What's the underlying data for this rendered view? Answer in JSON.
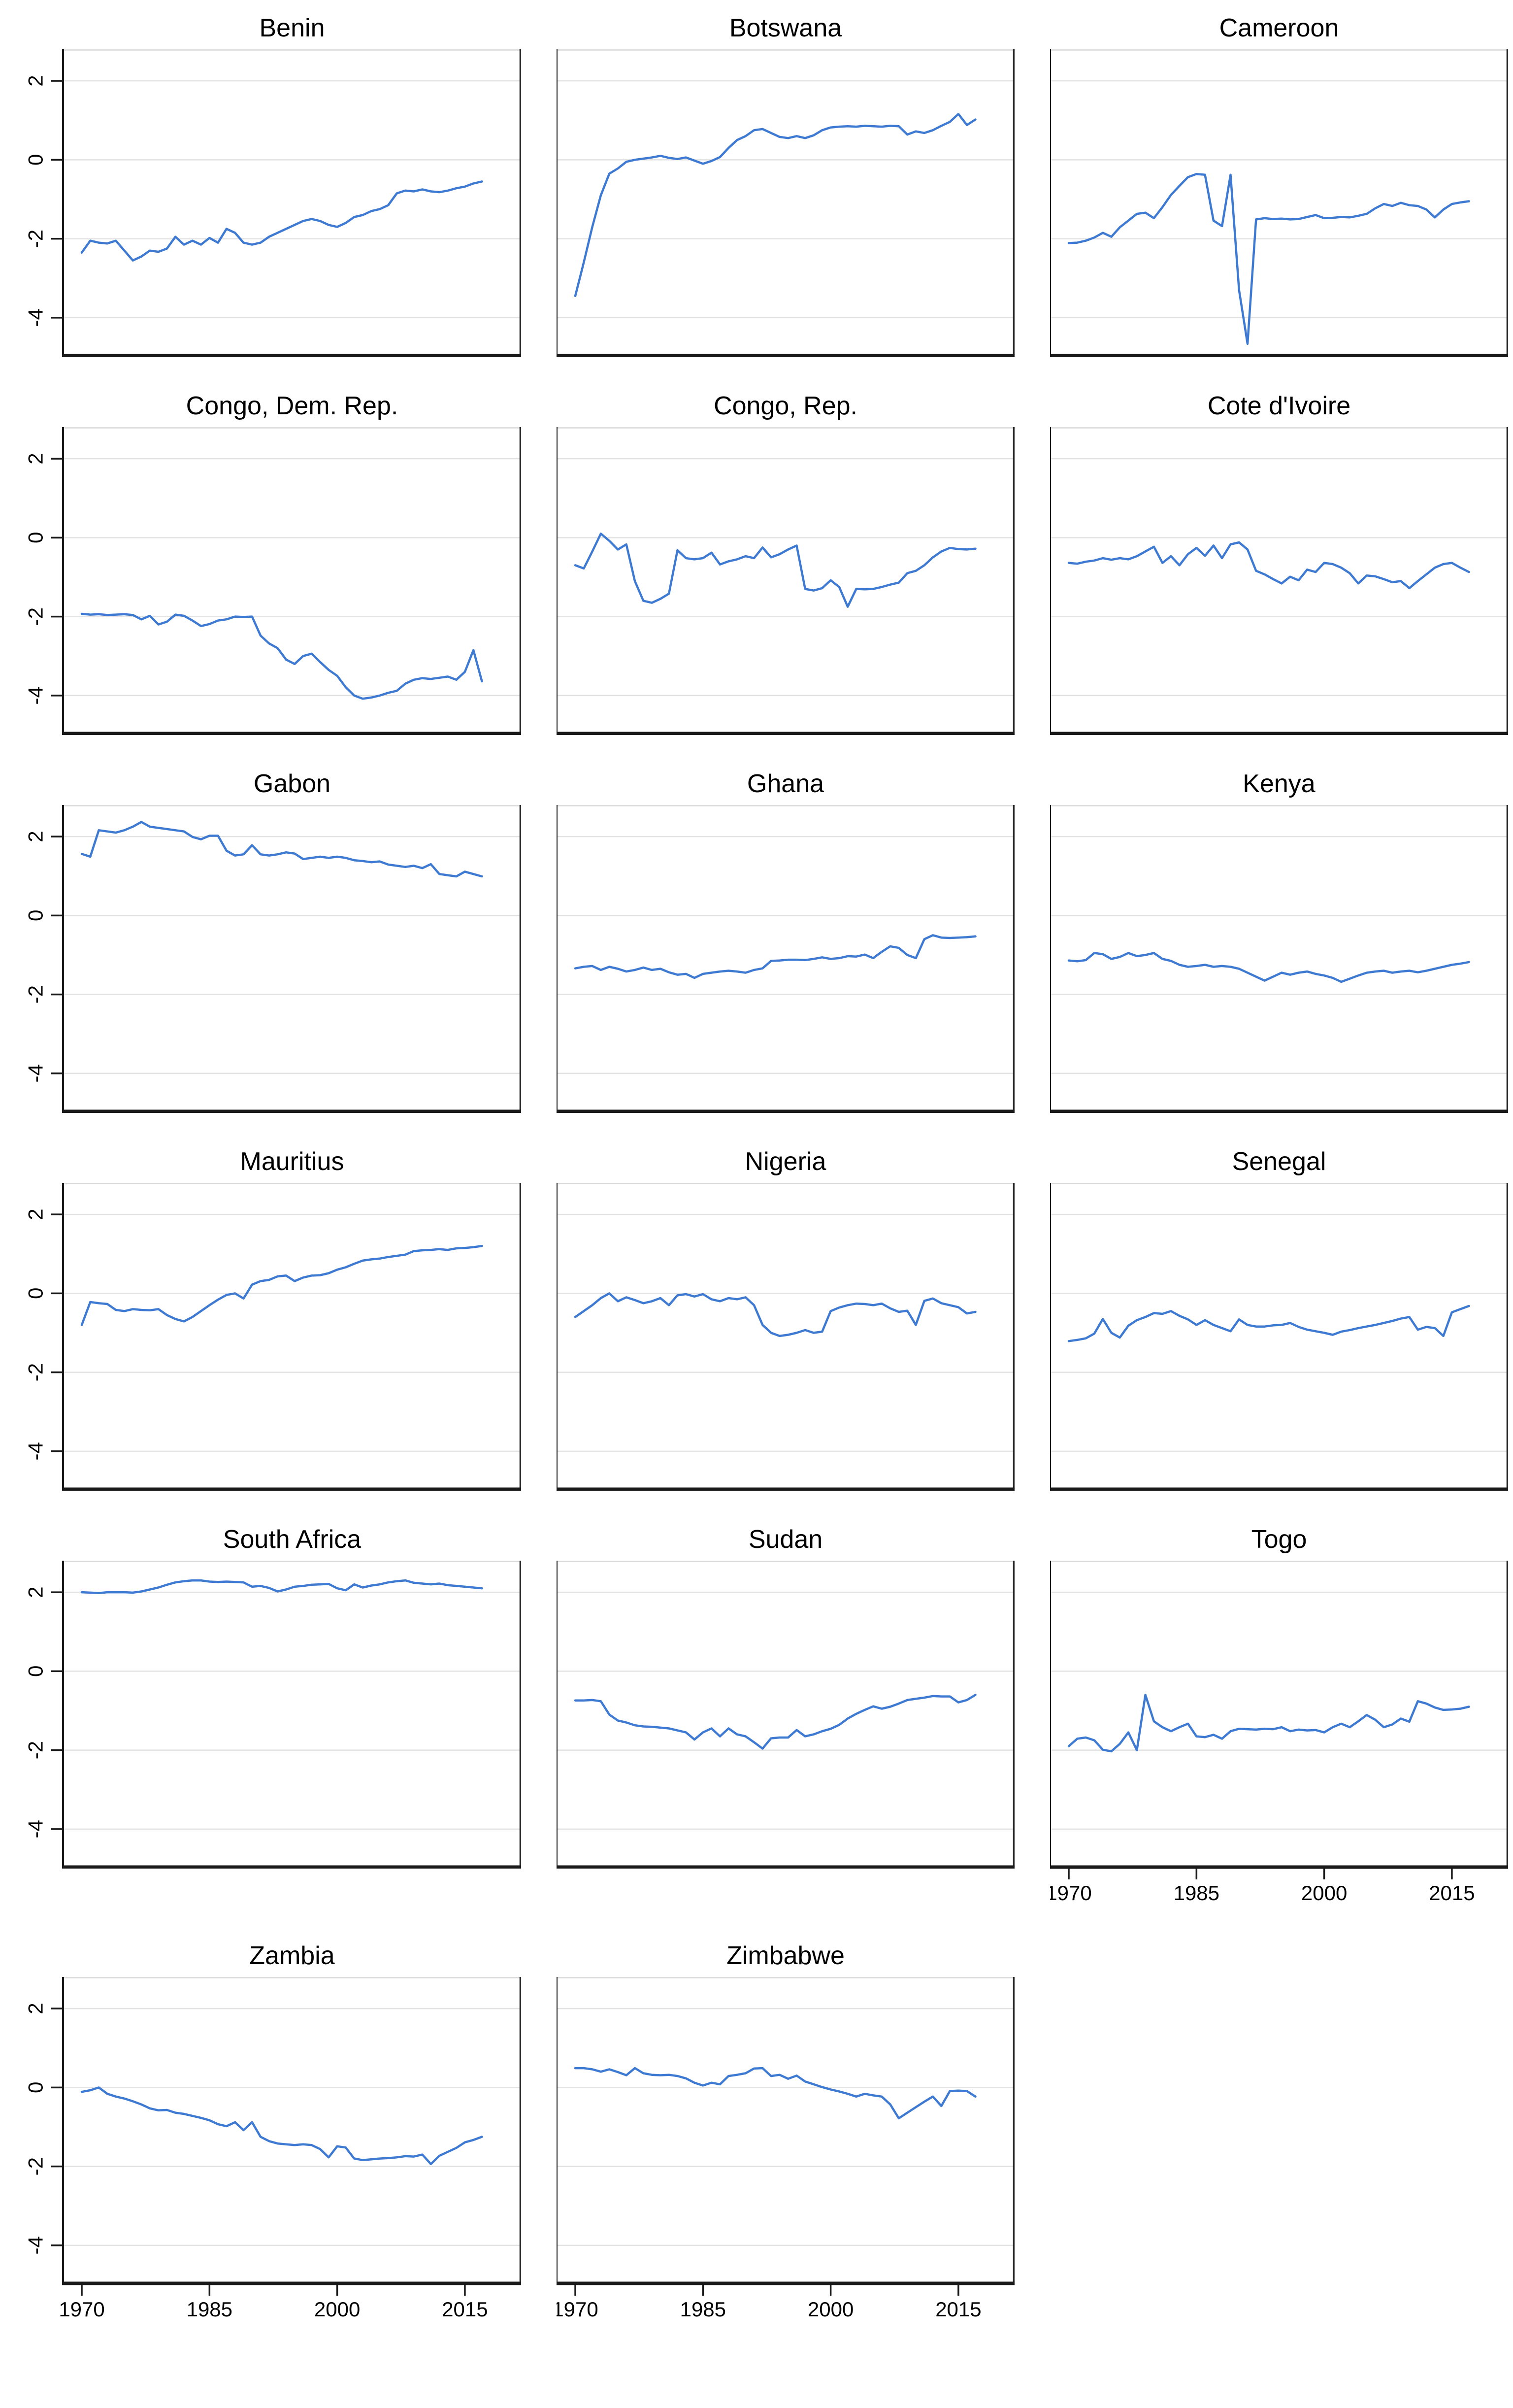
{
  "page": {
    "background": "#ffffff",
    "description": "Small-multiples line charts of 17 African countries, 1970-2017"
  },
  "chart_data": {
    "type": "line",
    "title": "",
    "xlabel": "",
    "ylabel": "",
    "grid": "horizontal-gridlines",
    "legend_position": "none",
    "line_color": "#3e7ad1",
    "gridline_color": "#e2e2e2",
    "axis_color": "#1a1a1a",
    "xlim": [
      1967.8,
      2021.6
    ],
    "ylim": [
      -5.0,
      2.8
    ],
    "x_ticks": [
      1970,
      1985,
      2000,
      2015
    ],
    "x_tick_labels": [
      "1970",
      "1985",
      "2000",
      "2015"
    ],
    "y_ticks": [
      2,
      0,
      -2,
      -4
    ],
    "y_tick_labels": [
      "2",
      "0",
      "-2",
      "-4"
    ],
    "y_tick_label_rotation_deg": -90,
    "x": [
      1970,
      1971,
      1972,
      1973,
      1974,
      1975,
      1976,
      1977,
      1978,
      1979,
      1980,
      1981,
      1982,
      1983,
      1984,
      1985,
      1986,
      1987,
      1988,
      1989,
      1990,
      1991,
      1992,
      1993,
      1994,
      1995,
      1996,
      1997,
      1998,
      1999,
      2000,
      2001,
      2002,
      2003,
      2004,
      2005,
      2006,
      2007,
      2008,
      2009,
      2010,
      2011,
      2012,
      2013,
      2014,
      2015,
      2016,
      2017
    ],
    "panels": [
      {
        "title": "Benin",
        "y_axis": true,
        "x_axis": false,
        "values": [
          -2.35,
          -2.05,
          -2.1,
          -2.12,
          -2.05,
          -2.3,
          -2.55,
          -2.45,
          -2.3,
          -2.33,
          -2.25,
          -1.95,
          -2.15,
          -2.05,
          -2.15,
          -1.98,
          -2.1,
          -1.75,
          -1.85,
          -2.1,
          -2.15,
          -2.1,
          -1.95,
          -1.85,
          -1.75,
          -1.65,
          -1.55,
          -1.5,
          -1.55,
          -1.65,
          -1.7,
          -1.6,
          -1.45,
          -1.4,
          -1.3,
          -1.25,
          -1.15,
          -0.85,
          -0.78,
          -0.8,
          -0.75,
          -0.8,
          -0.82,
          -0.78,
          -0.72,
          -0.68,
          -0.6,
          -0.55
        ]
      },
      {
        "title": "Botswana",
        "y_axis": false,
        "x_axis": false,
        "values": [
          -3.45,
          -2.6,
          -1.7,
          -0.9,
          -0.35,
          -0.22,
          -0.05,
          0.0,
          0.03,
          0.06,
          0.1,
          0.05,
          0.02,
          0.06,
          -0.02,
          -0.1,
          -0.03,
          0.07,
          0.3,
          0.5,
          0.6,
          0.75,
          0.78,
          0.68,
          0.58,
          0.55,
          0.6,
          0.55,
          0.62,
          0.75,
          0.82,
          0.84,
          0.85,
          0.84,
          0.86,
          0.85,
          0.84,
          0.86,
          0.85,
          0.64,
          0.72,
          0.68,
          0.75,
          0.86,
          0.96,
          1.16,
          0.88,
          1.02
        ]
      },
      {
        "title": "Cameroon",
        "y_axis": false,
        "x_axis": false,
        "values": [
          -2.11,
          -2.1,
          -2.05,
          -1.97,
          -1.85,
          -1.95,
          -1.71,
          -1.54,
          -1.37,
          -1.34,
          -1.48,
          -1.2,
          -0.89,
          -0.66,
          -0.44,
          -0.36,
          -0.38,
          -1.54,
          -1.68,
          -0.38,
          -3.3,
          -4.66,
          -1.51,
          -1.48,
          -1.5,
          -1.49,
          -1.51,
          -1.5,
          -1.45,
          -1.4,
          -1.48,
          -1.47,
          -1.45,
          -1.46,
          -1.42,
          -1.37,
          -1.23,
          -1.12,
          -1.17,
          -1.09,
          -1.15,
          -1.17,
          -1.26,
          -1.46,
          -1.26,
          -1.12,
          -1.08,
          -1.05
        ]
      },
      {
        "title": "Congo, Dem. Rep.",
        "y_axis": true,
        "x_axis": false,
        "values": [
          -1.93,
          -1.95,
          -1.94,
          -1.96,
          -1.95,
          -1.94,
          -1.96,
          -2.07,
          -1.98,
          -2.2,
          -2.13,
          -1.95,
          -1.98,
          -2.1,
          -2.24,
          -2.19,
          -2.1,
          -2.07,
          -2.0,
          -2.01,
          -2.0,
          -2.48,
          -2.68,
          -2.8,
          -3.09,
          -3.2,
          -3.0,
          -2.94,
          -3.15,
          -3.35,
          -3.5,
          -3.79,
          -4.0,
          -4.08,
          -4.05,
          -4.0,
          -3.93,
          -3.88,
          -3.7,
          -3.6,
          -3.56,
          -3.58,
          -3.55,
          -3.52,
          -3.6,
          -3.4,
          -2.85,
          -3.64
        ]
      },
      {
        "title": "Congo, Rep.",
        "y_axis": false,
        "x_axis": false,
        "values": [
          -0.7,
          -0.78,
          -0.35,
          0.1,
          -0.08,
          -0.3,
          -0.17,
          -1.1,
          -1.6,
          -1.65,
          -1.55,
          -1.42,
          -0.32,
          -0.52,
          -0.55,
          -0.52,
          -0.38,
          -0.68,
          -0.6,
          -0.55,
          -0.47,
          -0.52,
          -0.25,
          -0.5,
          -0.42,
          -0.3,
          -0.2,
          -1.3,
          -1.34,
          -1.28,
          -1.08,
          -1.25,
          -1.75,
          -1.3,
          -1.31,
          -1.3,
          -1.25,
          -1.19,
          -1.14,
          -0.9,
          -0.84,
          -0.7,
          -0.5,
          -0.35,
          -0.26,
          -0.29,
          -0.3,
          -0.28
        ]
      },
      {
        "title": "Cote d'Ivoire",
        "y_axis": false,
        "x_axis": false,
        "values": [
          -0.64,
          -0.66,
          -0.61,
          -0.58,
          -0.52,
          -0.56,
          -0.52,
          -0.55,
          -0.47,
          -0.35,
          -0.23,
          -0.64,
          -0.47,
          -0.7,
          -0.42,
          -0.26,
          -0.46,
          -0.2,
          -0.52,
          -0.17,
          -0.12,
          -0.3,
          -0.84,
          -0.93,
          -1.05,
          -1.16,
          -0.99,
          -1.08,
          -0.81,
          -0.87,
          -0.64,
          -0.67,
          -0.76,
          -0.9,
          -1.16,
          -0.96,
          -0.98,
          -1.05,
          -1.13,
          -1.1,
          -1.28,
          -1.1,
          -0.93,
          -0.76,
          -0.67,
          -0.64,
          -0.76,
          -0.87
        ]
      },
      {
        "title": "Gabon",
        "y_axis": true,
        "x_axis": false,
        "values": [
          1.56,
          1.49,
          2.16,
          2.13,
          2.1,
          2.16,
          2.25,
          2.37,
          2.25,
          2.22,
          2.19,
          2.16,
          2.13,
          1.99,
          1.93,
          2.02,
          2.02,
          1.64,
          1.52,
          1.55,
          1.78,
          1.55,
          1.52,
          1.55,
          1.6,
          1.57,
          1.43,
          1.46,
          1.49,
          1.46,
          1.49,
          1.46,
          1.4,
          1.38,
          1.35,
          1.37,
          1.29,
          1.26,
          1.23,
          1.26,
          1.2,
          1.3,
          1.05,
          1.02,
          0.99,
          1.11,
          1.05,
          0.99
        ]
      },
      {
        "title": "Ghana",
        "y_axis": false,
        "x_axis": false,
        "values": [
          -1.34,
          -1.3,
          -1.28,
          -1.38,
          -1.3,
          -1.35,
          -1.42,
          -1.38,
          -1.32,
          -1.38,
          -1.35,
          -1.44,
          -1.5,
          -1.48,
          -1.58,
          -1.48,
          -1.45,
          -1.42,
          -1.4,
          -1.42,
          -1.45,
          -1.38,
          -1.34,
          -1.15,
          -1.14,
          -1.12,
          -1.12,
          -1.13,
          -1.1,
          -1.06,
          -1.1,
          -1.08,
          -1.03,
          -1.04,
          -0.99,
          -1.08,
          -0.92,
          -0.78,
          -0.82,
          -1.0,
          -1.08,
          -0.6,
          -0.5,
          -0.56,
          -0.57,
          -0.56,
          -0.55,
          -0.53
        ]
      },
      {
        "title": "Kenya",
        "y_axis": false,
        "x_axis": false,
        "values": [
          -1.14,
          -1.16,
          -1.13,
          -0.95,
          -0.98,
          -1.1,
          -1.05,
          -0.95,
          -1.03,
          -1.0,
          -0.95,
          -1.1,
          -1.15,
          -1.25,
          -1.3,
          -1.28,
          -1.25,
          -1.3,
          -1.28,
          -1.3,
          -1.35,
          -1.45,
          -1.55,
          -1.65,
          -1.55,
          -1.45,
          -1.5,
          -1.45,
          -1.42,
          -1.48,
          -1.52,
          -1.58,
          -1.68,
          -1.6,
          -1.52,
          -1.45,
          -1.42,
          -1.4,
          -1.45,
          -1.42,
          -1.4,
          -1.44,
          -1.4,
          -1.35,
          -1.3,
          -1.25,
          -1.22,
          -1.18
        ]
      },
      {
        "title": "Mauritius",
        "y_axis": true,
        "x_axis": false,
        "values": [
          -0.8,
          -0.22,
          -0.25,
          -0.27,
          -0.42,
          -0.45,
          -0.4,
          -0.42,
          -0.43,
          -0.4,
          -0.55,
          -0.65,
          -0.71,
          -0.6,
          -0.45,
          -0.3,
          -0.16,
          -0.04,
          0.0,
          -0.13,
          0.22,
          0.31,
          0.34,
          0.43,
          0.45,
          0.31,
          0.4,
          0.45,
          0.46,
          0.51,
          0.6,
          0.66,
          0.75,
          0.83,
          0.86,
          0.88,
          0.92,
          0.95,
          0.98,
          1.07,
          1.09,
          1.1,
          1.12,
          1.1,
          1.14,
          1.15,
          1.17,
          1.2
        ]
      },
      {
        "title": "Nigeria",
        "y_axis": false,
        "x_axis": false,
        "values": [
          -0.6,
          -0.45,
          -0.3,
          -0.12,
          0.0,
          -0.2,
          -0.1,
          -0.17,
          -0.25,
          -0.2,
          -0.12,
          -0.3,
          -0.05,
          -0.02,
          -0.08,
          -0.02,
          -0.15,
          -0.2,
          -0.12,
          -0.15,
          -0.1,
          -0.3,
          -0.8,
          -1.0,
          -1.08,
          -1.05,
          -1.0,
          -0.93,
          -1.0,
          -0.97,
          -0.45,
          -0.36,
          -0.3,
          -0.26,
          -0.27,
          -0.3,
          -0.26,
          -0.38,
          -0.47,
          -0.44,
          -0.8,
          -0.19,
          -0.13,
          -0.25,
          -0.3,
          -0.35,
          -0.51,
          -0.47
        ]
      },
      {
        "title": "Senegal",
        "y_axis": false,
        "x_axis": false,
        "values": [
          -1.21,
          -1.18,
          -1.14,
          -1.02,
          -0.65,
          -1.0,
          -1.12,
          -0.82,
          -0.68,
          -0.6,
          -0.5,
          -0.52,
          -0.45,
          -0.57,
          -0.66,
          -0.8,
          -0.68,
          -0.8,
          -0.88,
          -0.96,
          -0.66,
          -0.8,
          -0.84,
          -0.84,
          -0.81,
          -0.8,
          -0.75,
          -0.85,
          -0.92,
          -0.96,
          -1.0,
          -1.05,
          -0.97,
          -0.93,
          -0.88,
          -0.84,
          -0.8,
          -0.75,
          -0.7,
          -0.64,
          -0.6,
          -0.92,
          -0.85,
          -0.88,
          -1.08,
          -0.48,
          -0.4,
          -0.32
        ]
      },
      {
        "title": "South Africa",
        "y_axis": true,
        "x_axis": false,
        "values": [
          2.0,
          1.99,
          1.98,
          2.0,
          2.0,
          2.0,
          1.99,
          2.02,
          2.07,
          2.12,
          2.19,
          2.25,
          2.28,
          2.3,
          2.3,
          2.27,
          2.26,
          2.27,
          2.26,
          2.25,
          2.14,
          2.16,
          2.11,
          2.02,
          2.07,
          2.14,
          2.16,
          2.19,
          2.2,
          2.21,
          2.1,
          2.05,
          2.2,
          2.12,
          2.17,
          2.2,
          2.25,
          2.28,
          2.3,
          2.24,
          2.22,
          2.2,
          2.22,
          2.18,
          2.16,
          2.14,
          2.12,
          2.1
        ]
      },
      {
        "title": "Sudan",
        "y_axis": false,
        "x_axis": false,
        "values": [
          -0.74,
          -0.74,
          -0.73,
          -0.76,
          -1.1,
          -1.25,
          -1.3,
          -1.37,
          -1.4,
          -1.41,
          -1.43,
          -1.45,
          -1.5,
          -1.55,
          -1.73,
          -1.55,
          -1.45,
          -1.65,
          -1.45,
          -1.6,
          -1.65,
          -1.8,
          -1.96,
          -1.7,
          -1.68,
          -1.68,
          -1.49,
          -1.65,
          -1.6,
          -1.52,
          -1.46,
          -1.36,
          -1.2,
          -1.08,
          -0.98,
          -0.89,
          -0.95,
          -0.9,
          -0.82,
          -0.73,
          -0.7,
          -0.67,
          -0.63,
          -0.64,
          -0.64,
          -0.79,
          -0.73,
          -0.6
        ]
      },
      {
        "title": "Togo",
        "y_axis": false,
        "x_axis": true,
        "values": [
          -1.9,
          -1.71,
          -1.68,
          -1.75,
          -1.99,
          -2.03,
          -1.84,
          -1.55,
          -2.0,
          -0.6,
          -1.27,
          -1.42,
          -1.52,
          -1.42,
          -1.33,
          -1.65,
          -1.67,
          -1.61,
          -1.71,
          -1.52,
          -1.46,
          -1.47,
          -1.48,
          -1.46,
          -1.47,
          -1.42,
          -1.52,
          -1.48,
          -1.5,
          -1.49,
          -1.55,
          -1.42,
          -1.33,
          -1.42,
          -1.27,
          -1.11,
          -1.23,
          -1.42,
          -1.35,
          -1.2,
          -1.28,
          -0.76,
          -0.82,
          -0.92,
          -0.98,
          -0.97,
          -0.95,
          -0.9
        ]
      },
      {
        "title": "Zambia",
        "y_axis": true,
        "x_axis": true,
        "values": [
          -0.11,
          -0.07,
          0.0,
          -0.16,
          -0.23,
          -0.28,
          -0.35,
          -0.43,
          -0.53,
          -0.58,
          -0.57,
          -0.64,
          -0.67,
          -0.72,
          -0.77,
          -0.83,
          -0.93,
          -0.98,
          -0.88,
          -1.08,
          -0.88,
          -1.25,
          -1.36,
          -1.42,
          -1.44,
          -1.46,
          -1.44,
          -1.46,
          -1.56,
          -1.77,
          -1.49,
          -1.52,
          -1.8,
          -1.84,
          -1.82,
          -1.8,
          -1.79,
          -1.77,
          -1.74,
          -1.75,
          -1.7,
          -1.94,
          -1.73,
          -1.63,
          -1.53,
          -1.39,
          -1.33,
          -1.25
        ]
      },
      {
        "title": "Zimbabwe",
        "y_axis": false,
        "x_axis": true,
        "values": [
          0.49,
          0.49,
          0.46,
          0.4,
          0.46,
          0.39,
          0.31,
          0.49,
          0.36,
          0.32,
          0.31,
          0.32,
          0.29,
          0.23,
          0.12,
          0.05,
          0.12,
          0.08,
          0.29,
          0.32,
          0.36,
          0.48,
          0.49,
          0.29,
          0.32,
          0.22,
          0.3,
          0.15,
          0.08,
          0.01,
          -0.05,
          -0.1,
          -0.16,
          -0.23,
          -0.16,
          -0.2,
          -0.23,
          -0.43,
          -0.78,
          -0.64,
          -0.5,
          -0.36,
          -0.23,
          -0.47,
          -0.09,
          -0.08,
          -0.09,
          -0.23
        ]
      }
    ]
  }
}
